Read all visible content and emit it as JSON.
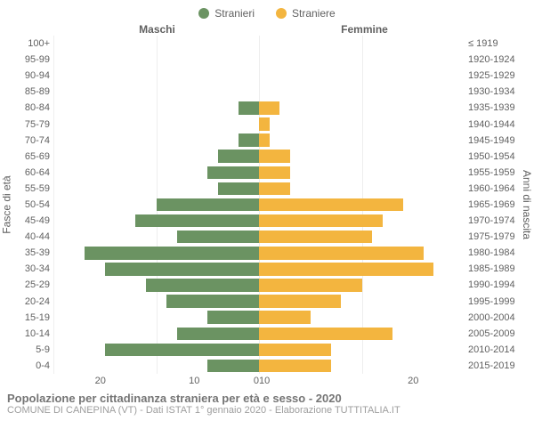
{
  "legend": {
    "male_label": "Stranieri",
    "female_label": "Straniere",
    "male_color": "#6b9362",
    "female_color": "#f3b53f"
  },
  "headers": {
    "male": "Maschi",
    "female": "Femmine"
  },
  "axis": {
    "left_title": "Fasce di età",
    "right_title": "Anni di nascita",
    "x_max": 20,
    "x_ticks": [
      0,
      10,
      20
    ]
  },
  "rows": [
    {
      "age": "100+",
      "birth": "≤ 1919",
      "m": 0,
      "f": 0
    },
    {
      "age": "95-99",
      "birth": "1920-1924",
      "m": 0,
      "f": 0
    },
    {
      "age": "90-94",
      "birth": "1925-1929",
      "m": 0,
      "f": 0
    },
    {
      "age": "85-89",
      "birth": "1930-1934",
      "m": 0,
      "f": 0
    },
    {
      "age": "80-84",
      "birth": "1935-1939",
      "m": 2,
      "f": 2
    },
    {
      "age": "75-79",
      "birth": "1940-1944",
      "m": 0,
      "f": 1
    },
    {
      "age": "70-74",
      "birth": "1945-1949",
      "m": 2,
      "f": 1
    },
    {
      "age": "65-69",
      "birth": "1950-1954",
      "m": 4,
      "f": 3
    },
    {
      "age": "60-64",
      "birth": "1955-1959",
      "m": 5,
      "f": 3
    },
    {
      "age": "55-59",
      "birth": "1960-1964",
      "m": 4,
      "f": 3
    },
    {
      "age": "50-54",
      "birth": "1965-1969",
      "m": 10,
      "f": 14
    },
    {
      "age": "45-49",
      "birth": "1970-1974",
      "m": 12,
      "f": 12
    },
    {
      "age": "40-44",
      "birth": "1975-1979",
      "m": 8,
      "f": 11
    },
    {
      "age": "35-39",
      "birth": "1980-1984",
      "m": 17,
      "f": 16
    },
    {
      "age": "30-34",
      "birth": "1985-1989",
      "m": 15,
      "f": 17
    },
    {
      "age": "25-29",
      "birth": "1990-1994",
      "m": 11,
      "f": 10
    },
    {
      "age": "20-24",
      "birth": "1995-1999",
      "m": 9,
      "f": 8
    },
    {
      "age": "15-19",
      "birth": "2000-2004",
      "m": 5,
      "f": 5
    },
    {
      "age": "10-14",
      "birth": "2005-2009",
      "m": 8,
      "f": 13
    },
    {
      "age": "5-9",
      "birth": "2010-2014",
      "m": 15,
      "f": 7
    },
    {
      "age": "0-4",
      "birth": "2015-2019",
      "m": 5,
      "f": 7
    }
  ],
  "footer": {
    "title": "Popolazione per cittadinanza straniera per età e sesso - 2020",
    "subtitle": "COMUNE DI CANEPINA (VT) - Dati ISTAT 1° gennaio 2020 - Elaborazione TUTTITALIA.IT"
  },
  "style": {
    "grid_color": "#eeeeee",
    "text_color": "#616161",
    "background": "#ffffff"
  }
}
